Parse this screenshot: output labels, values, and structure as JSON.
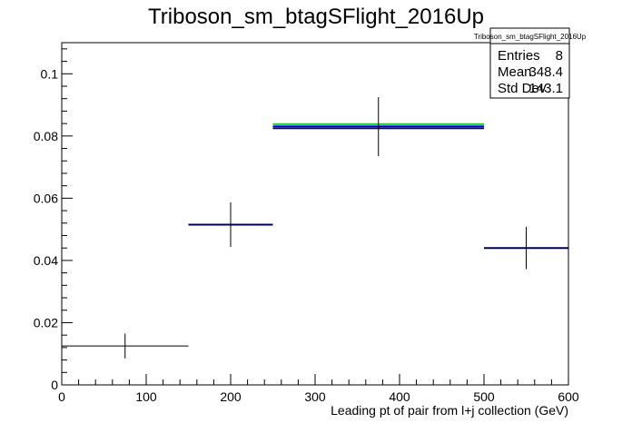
{
  "chart_data": {
    "type": "histogram",
    "title": "Triboson_sm_btagSFlight_2016Up",
    "xlabel": "Leading pt of pair from l+j collection (GeV)",
    "ylabel": "",
    "xlim": [
      0,
      600
    ],
    "ylim": [
      0,
      0.11
    ],
    "x_ticks": [
      0,
      100,
      200,
      300,
      400,
      500,
      600
    ],
    "x_tick_labels": [
      "0",
      "100",
      "200",
      "300",
      "400",
      "500",
      "600"
    ],
    "y_ticks": [
      0,
      0.02,
      0.04,
      0.06,
      0.08,
      0.1
    ],
    "y_tick_labels": [
      "0",
      "0.02",
      "0.04",
      "0.06",
      "0.08",
      "0.1"
    ],
    "grid": false,
    "legend_placement": "none",
    "bins": [
      {
        "low": 0,
        "high": 150,
        "value": 0.0125,
        "err": 0.004
      },
      {
        "low": 150,
        "high": 250,
        "value": 0.0515,
        "err": 0.0072
      },
      {
        "low": 250,
        "high": 500,
        "value": 0.083,
        "err": 0.0095
      },
      {
        "low": 500,
        "high": 600,
        "value": 0.044,
        "err": 0.0068
      }
    ],
    "series": [
      {
        "color": "#000000",
        "style": "error",
        "values": [
          0.0125,
          0.0515,
          0.083,
          0.044
        ],
        "bins": [
          0,
          1,
          2,
          3
        ]
      },
      {
        "color": "#00007f",
        "style": "step",
        "values": [
          0.0515,
          0.0825,
          0.044
        ],
        "bins": [
          1,
          2,
          3
        ]
      },
      {
        "color": "#22cc22",
        "style": "step",
        "values": [
          0.0838
        ],
        "bins": [
          2
        ]
      },
      {
        "color": "#3355ff",
        "style": "step",
        "values": [
          0.0832
        ],
        "bins": [
          2
        ]
      }
    ],
    "stats_box": {
      "title": "Triboson_sm_btagSFlight_2016Up",
      "rows": [
        {
          "label": "Entries",
          "value": "8"
        },
        {
          "label": "Mean",
          "value": "348.4"
        },
        {
          "label": "Std Dev",
          "value": "143.1"
        }
      ]
    }
  }
}
